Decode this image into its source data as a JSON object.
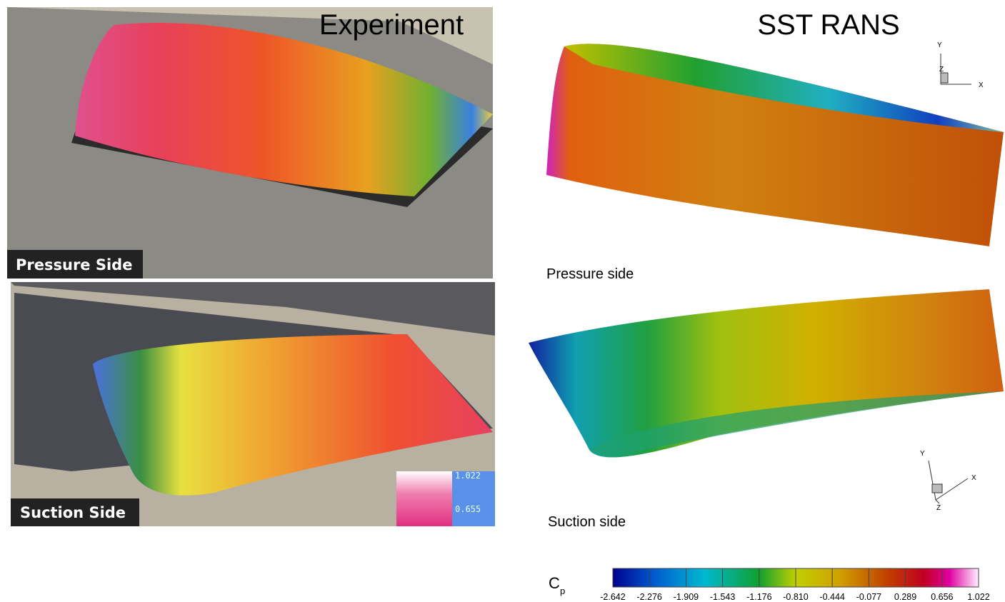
{
  "header": {
    "left": "Experiment",
    "right": "SST RANS"
  },
  "experiment": {
    "top_label": "Pressure Side",
    "bottom_label": "Suction Side",
    "legend_ticks": [
      1.022,
      0.655
    ]
  },
  "simulation": {
    "top_label": "Pressure side",
    "bottom_label": "Suction side",
    "triads": [
      {
        "x": "X",
        "y": "Y",
        "z": "Z"
      },
      {
        "x": "X",
        "y": "Y",
        "z": "Z"
      }
    ]
  },
  "colorbar": {
    "label": "C",
    "label_sub": "p",
    "range": [
      -2.642,
      1.022
    ],
    "ticks": [
      -2.642,
      -2.276,
      -1.909,
      -1.543,
      -1.176,
      {
        "value": -0.81,
        "label": "-0.810"
      },
      -0.444,
      -0.077,
      0.289,
      0.656,
      1.022
    ]
  }
}
